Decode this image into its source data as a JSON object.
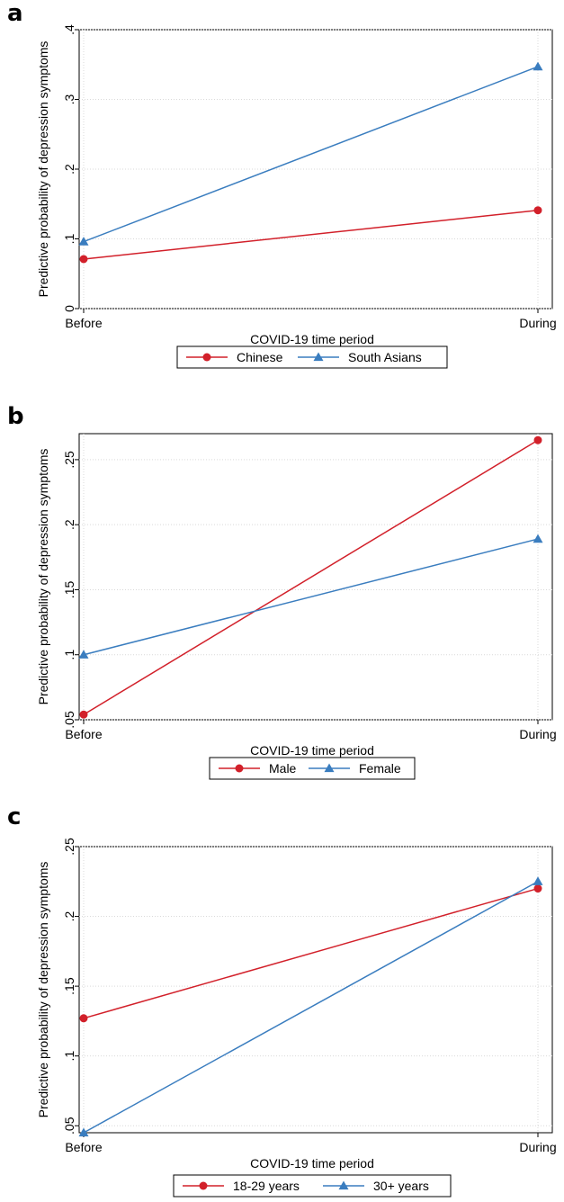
{
  "colors": {
    "series1": "#d2202a",
    "series2": "#3a7dbf",
    "grid": "#d9d9d9",
    "axis": "#000000"
  },
  "chart_data": [
    {
      "panel": "a",
      "type": "line",
      "categories": [
        "Before",
        "During"
      ],
      "xlabel": "COVID-19 time period",
      "ylabel": "Predictive probability of depression symptoms",
      "ylim": [
        0,
        0.4
      ],
      "yticks": [
        0,
        0.1,
        0.2,
        0.3,
        0.4
      ],
      "ytick_labels": [
        "0",
        ".1",
        ".2",
        ".3",
        ".4"
      ],
      "grid": true,
      "legend_position": "bottom",
      "series": [
        {
          "name": "Chinese",
          "marker": "circle",
          "color": "#d2202a",
          "values": [
            0.071,
            0.141
          ]
        },
        {
          "name": "South Asians",
          "marker": "triangle",
          "color": "#3a7dbf",
          "values": [
            0.096,
            0.347
          ]
        }
      ]
    },
    {
      "panel": "b",
      "type": "line",
      "categories": [
        "Before",
        "During"
      ],
      "xlabel": "COVID-19 time period",
      "ylabel": "Predictive probability of depression symptoms",
      "ylim": [
        0.05,
        0.27
      ],
      "yticks": [
        0.05,
        0.1,
        0.15,
        0.2,
        0.25
      ],
      "ytick_labels": [
        ".05",
        ".1",
        ".15",
        ".2",
        ".25"
      ],
      "grid": true,
      "legend_position": "bottom",
      "series": [
        {
          "name": "Male",
          "marker": "circle",
          "color": "#d2202a",
          "values": [
            0.054,
            0.265
          ]
        },
        {
          "name": "Female",
          "marker": "triangle",
          "color": "#3a7dbf",
          "values": [
            0.1,
            0.189
          ]
        }
      ]
    },
    {
      "panel": "c",
      "type": "line",
      "categories": [
        "Before",
        "During"
      ],
      "xlabel": "COVID-19 time period",
      "ylabel": "Predictive probability of depression symptoms",
      "ylim": [
        0.045,
        0.25
      ],
      "yticks": [
        0.05,
        0.1,
        0.15,
        0.2,
        0.25
      ],
      "ytick_labels": [
        ".05",
        ".1",
        ".15",
        ".2",
        ".25"
      ],
      "grid": true,
      "legend_position": "bottom",
      "series": [
        {
          "name": "18-29 years",
          "marker": "circle",
          "color": "#d2202a",
          "values": [
            0.127,
            0.22
          ]
        },
        {
          "name": "30+ years",
          "marker": "triangle",
          "color": "#3a7dbf",
          "values": [
            0.045,
            0.225
          ]
        }
      ]
    }
  ]
}
